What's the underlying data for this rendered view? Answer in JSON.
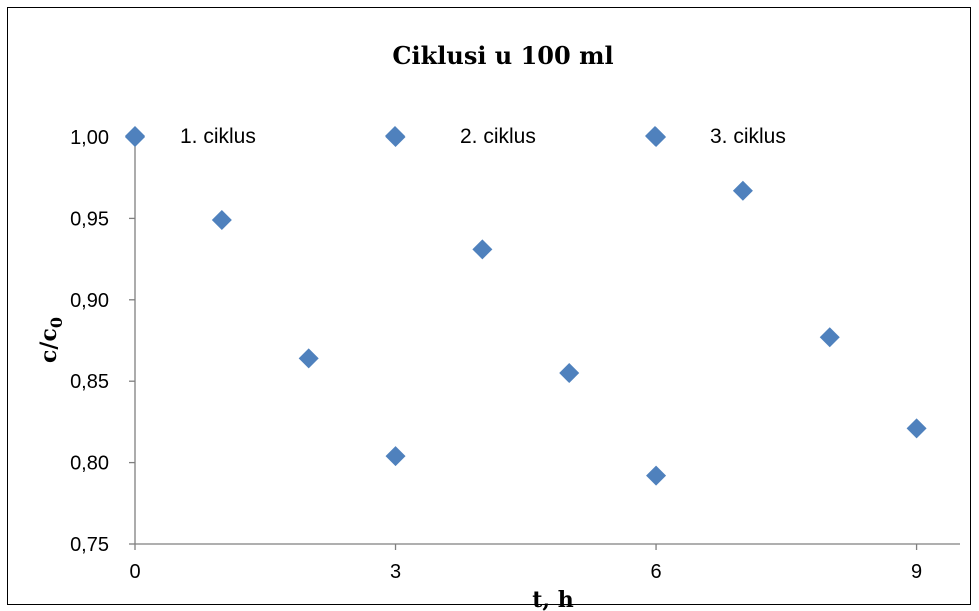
{
  "chart_data": {
    "type": "scatter",
    "title": "Ciklusi u 100 ml",
    "xlabel": "t, h",
    "ylabel": {
      "main": "c/c",
      "sub": "0"
    },
    "xlim": [
      0,
      9.5
    ],
    "ylim": [
      0.75,
      1.0
    ],
    "xticks": [
      "0",
      "3",
      "6",
      "9"
    ],
    "yticks": [
      "0,75",
      "0,80",
      "0,85",
      "0,90",
      "0,95",
      "1,00"
    ],
    "grid": false,
    "legend_position": "top",
    "marker_color": "#4F81BD",
    "series": [
      {
        "name": "1. ciklus",
        "x": [
          0,
          1,
          2,
          3
        ],
        "y": [
          1.0,
          0.949,
          0.864,
          0.804
        ]
      },
      {
        "name": "2. ciklus",
        "x": [
          3,
          4,
          5,
          6
        ],
        "y": [
          1.0,
          0.931,
          0.855,
          0.792
        ]
      },
      {
        "name": "3. ciklus",
        "x": [
          6,
          7,
          8,
          9
        ],
        "y": [
          1.0,
          0.967,
          0.877,
          0.821
        ]
      }
    ]
  }
}
